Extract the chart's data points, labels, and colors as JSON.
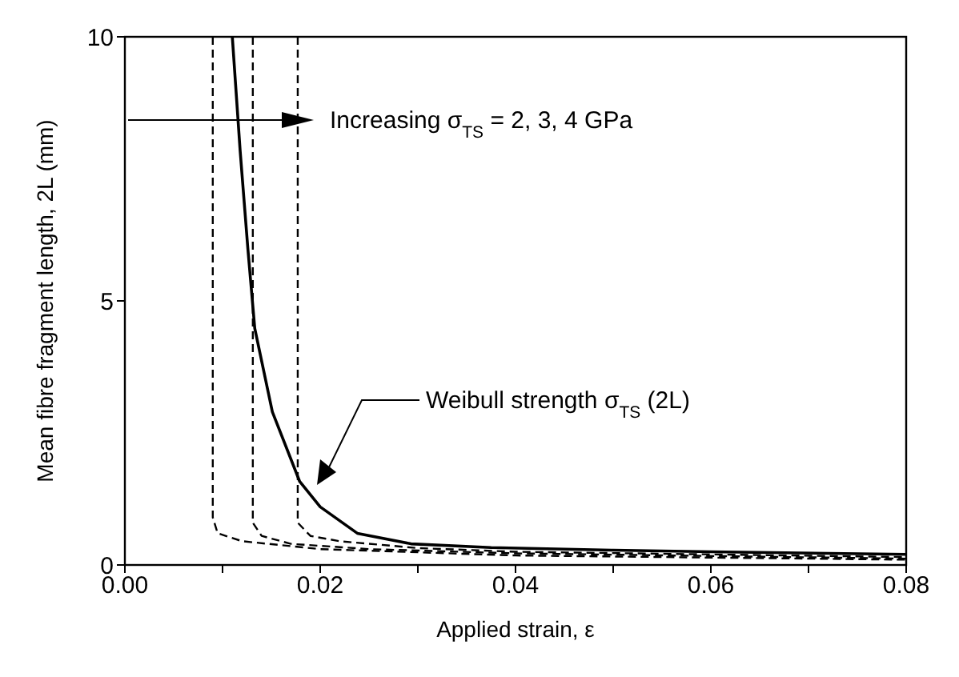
{
  "chart_data": {
    "type": "line",
    "xlabel": "Applied strain, ε",
    "ylabel": "Mean fibre fragment length, 2L (mm)",
    "xlim": [
      0,
      0.08
    ],
    "xticks": [
      {
        "value": 0,
        "label": "0.00"
      },
      {
        "value": 0.01,
        "label": null
      },
      {
        "value": 0.02,
        "label": "0.02"
      },
      {
        "value": 0.03,
        "label": null
      },
      {
        "value": 0.04,
        "label": "0.04"
      },
      {
        "value": 0.05,
        "label": null
      },
      {
        "value": 0.06,
        "label": "0.06"
      },
      {
        "value": 0.07,
        "label": null
      },
      {
        "value": 0.08,
        "label": "0.08"
      }
    ],
    "ylim": [
      0,
      10
    ],
    "yticks": [
      0,
      5,
      10
    ],
    "marker": "none",
    "series": [
      {
        "color": "#000000",
        "line_style": "solid",
        "x": [
          0.011,
          0.0118,
          0.0126,
          0.0133,
          0.0151,
          0.0179,
          0.02,
          0.0238,
          0.0293,
          0.0375,
          0.05,
          0.06,
          0.08
        ],
        "values": [
          10,
          7.85,
          5.97,
          4.48,
          2.9,
          1.58,
          1.1,
          0.6,
          0.4,
          0.33,
          0.28,
          0.25,
          0.2
        ]
      },
      {
        "color": "#000000",
        "line_style": "dashed",
        "x": [
          0.009,
          0.009,
          0.0095,
          0.012,
          0.02,
          0.04,
          0.08
        ],
        "values": [
          10,
          0.9,
          0.6,
          0.45,
          0.3,
          0.18,
          0.1
        ]
      },
      {
        "color": "#000000",
        "line_style": "dashed",
        "x": [
          0.0131,
          0.0131,
          0.014,
          0.017,
          0.025,
          0.04,
          0.08
        ],
        "values": [
          10,
          0.8,
          0.55,
          0.4,
          0.3,
          0.22,
          0.12
        ]
      },
      {
        "color": "#000000",
        "line_style": "dashed",
        "x": [
          0.0177,
          0.0177,
          0.019,
          0.022,
          0.03,
          0.04,
          0.08
        ],
        "values": [
          10,
          0.8,
          0.55,
          0.45,
          0.32,
          0.25,
          0.15
        ]
      }
    ],
    "annotations": [
      "Increasing σ$_{TS}$ = 2, 3, 4 GPa",
      "Weibull strength σ$_{TS}$ (2L)"
    ]
  }
}
